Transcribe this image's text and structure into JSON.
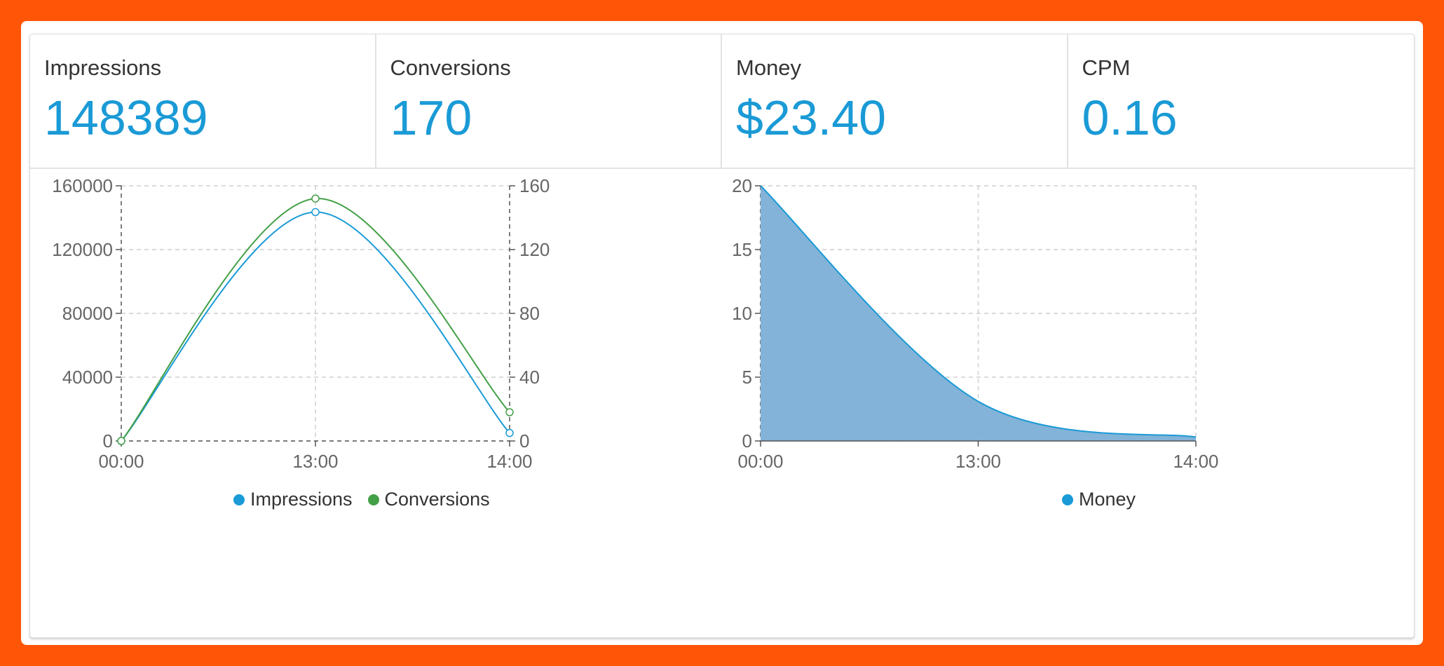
{
  "stats": [
    {
      "label": "Impressions",
      "value": "148389"
    },
    {
      "label": "Conversions",
      "value": "170"
    },
    {
      "label": "Money",
      "value": "$23.40"
    },
    {
      "label": "CPM",
      "value": "0.16"
    }
  ],
  "colors": {
    "accent": "#1a9ad6",
    "impressions": "#1a9ad6",
    "conversions": "#43a047",
    "money_fill": "#83b3d8",
    "background": "#ff5507"
  },
  "chart_data": [
    {
      "type": "line",
      "x": [
        "00:00",
        "13:00",
        "14:00"
      ],
      "series": [
        {
          "name": "Impressions",
          "values": [
            0,
            143500,
            5000
          ],
          "axis": "left",
          "color": "#1a9ad6"
        },
        {
          "name": "Conversions",
          "values": [
            0,
            152,
            18
          ],
          "axis": "right",
          "color": "#43a047"
        }
      ],
      "ylim_left": [
        0,
        160000
      ],
      "yticks_left": [
        "0",
        "40000",
        "80000",
        "120000",
        "160000"
      ],
      "ylim_right": [
        0,
        160
      ],
      "yticks_right": [
        "0",
        "40",
        "80",
        "120",
        "160"
      ],
      "grid": true,
      "legend": "bottom"
    },
    {
      "type": "area",
      "x": [
        "00:00",
        "13:00",
        "14:00"
      ],
      "series": [
        {
          "name": "Money",
          "values": [
            20,
            3.1,
            0.3
          ],
          "color": "#1a9ad6"
        }
      ],
      "ylim": [
        0,
        20
      ],
      "yticks": [
        "0",
        "5",
        "10",
        "15",
        "20"
      ],
      "grid": true,
      "legend": "bottom"
    }
  ]
}
